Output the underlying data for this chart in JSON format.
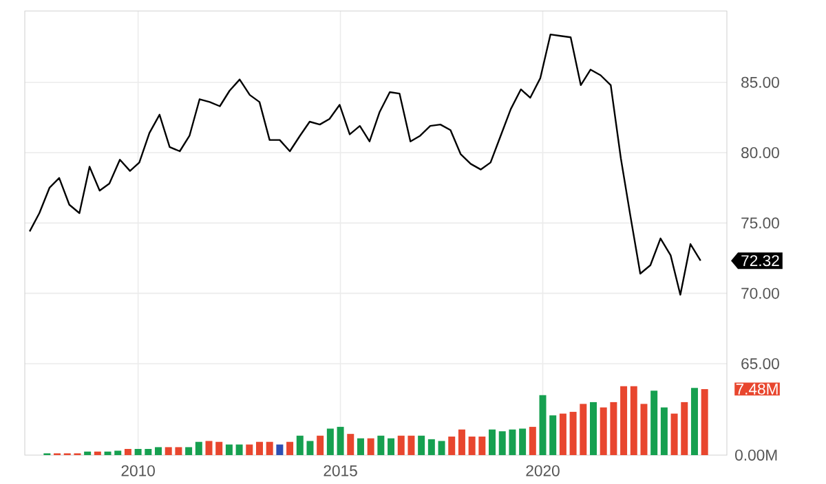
{
  "chart_data": {
    "type": "line",
    "xlim": [
      2007.2,
      2024.55
    ],
    "xticks": [
      2010,
      2015,
      2020
    ],
    "ylim": [
      58.5,
      90.07
    ],
    "yticks": [
      {
        "value": 65,
        "label": "65.00"
      },
      {
        "value": 70,
        "label": "70.00"
      },
      {
        "value": 75,
        "label": "75.00"
      },
      {
        "value": 80,
        "label": "80.00"
      },
      {
        "value": 85,
        "label": "85.00"
      }
    ],
    "y2lim": [
      0,
      50.3
    ],
    "y2ticks": [
      {
        "value": 0,
        "label": "0.00M"
      },
      {
        "value": 7.48,
        "label": "7.48M"
      }
    ],
    "grid": true,
    "annotations": [
      {
        "text": "72.32",
        "x": 2023.9,
        "y": 72.32
      }
    ],
    "series": [
      {
        "color": "#000000",
        "x": [
          2007.32,
          2007.56,
          2007.81,
          2008.05,
          2008.3,
          2008.55,
          2008.8,
          2009.05,
          2009.29,
          2009.55,
          2009.8,
          2010.03,
          2010.28,
          2010.53,
          2010.78,
          2011.03,
          2011.27,
          2011.52,
          2011.77,
          2012.02,
          2012.26,
          2012.51,
          2012.76,
          2013.0,
          2013.25,
          2013.5,
          2013.75,
          2014.0,
          2014.24,
          2014.49,
          2014.73,
          2014.98,
          2015.23,
          2015.48,
          2015.72,
          2015.97,
          2016.22,
          2016.46,
          2016.73,
          2016.97,
          2017.22,
          2017.47,
          2017.72,
          2017.97,
          2018.22,
          2018.47,
          2018.71,
          2018.96,
          2019.21,
          2019.46,
          2019.69,
          2019.94,
          2020.19,
          2020.44,
          2020.69,
          2020.94,
          2021.18,
          2021.43,
          2021.68,
          2021.93,
          2022.16,
          2022.41,
          2022.66,
          2022.91,
          2023.16,
          2023.4,
          2023.65,
          2023.9
        ],
        "values": [
          74.4,
          75.7,
          77.5,
          78.2,
          76.3,
          75.7,
          79.0,
          77.3,
          77.8,
          79.5,
          78.7,
          79.3,
          81.4,
          82.7,
          80.4,
          80.1,
          81.2,
          83.8,
          83.6,
          83.3,
          84.4,
          85.2,
          84.1,
          83.6,
          80.9,
          80.9,
          80.1,
          81.2,
          82.2,
          82.0,
          82.4,
          83.4,
          81.3,
          81.9,
          80.8,
          82.9,
          84.3,
          84.2,
          80.8,
          81.2,
          81.9,
          82.0,
          81.6,
          79.9,
          79.2,
          78.8,
          79.3,
          81.2,
          83.1,
          84.5,
          83.9,
          85.3,
          88.4,
          88.3,
          88.2,
          84.8,
          85.9,
          85.5,
          84.8,
          79.6,
          75.6,
          71.4,
          72.0,
          73.9,
          72.7,
          69.9,
          73.5,
          72.32
        ]
      },
      {
        "type": "bar",
        "axis": "y2",
        "x": [
          2007.75,
          2008.0,
          2008.25,
          2008.5,
          2008.75,
          2009.0,
          2009.25,
          2009.5,
          2009.75,
          2010.0,
          2010.25,
          2010.5,
          2010.75,
          2011.0,
          2011.25,
          2011.5,
          2011.75,
          2012.0,
          2012.25,
          2012.5,
          2012.75,
          2013.0,
          2013.25,
          2013.5,
          2013.75,
          2014.0,
          2014.25,
          2014.5,
          2014.75,
          2015.0,
          2015.25,
          2015.5,
          2015.75,
          2016.0,
          2016.25,
          2016.5,
          2016.75,
          2017.0,
          2017.25,
          2017.5,
          2017.75,
          2018.0,
          2018.25,
          2018.5,
          2018.75,
          2019.0,
          2019.25,
          2019.5,
          2019.75,
          2020.0,
          2020.25,
          2020.5,
          2020.75,
          2021.0,
          2021.25,
          2021.5,
          2021.75,
          2022.0,
          2022.25,
          2022.5,
          2022.75,
          2023.0,
          2023.25,
          2023.5,
          2023.75,
          2024.0
        ],
        "values": [
          0.2,
          0.2,
          0.2,
          0.2,
          0.4,
          0.4,
          0.4,
          0.5,
          0.7,
          0.7,
          0.7,
          0.9,
          0.9,
          0.9,
          0.9,
          1.5,
          1.6,
          1.5,
          1.2,
          1.2,
          1.2,
          1.5,
          1.5,
          1.2,
          1.5,
          2.2,
          1.6,
          2.2,
          3.0,
          3.2,
          2.4,
          1.9,
          1.9,
          2.2,
          1.9,
          2.2,
          2.2,
          2.2,
          1.8,
          1.6,
          2.1,
          2.9,
          2.1,
          2.1,
          2.9,
          2.7,
          2.9,
          3.0,
          3.2,
          6.8,
          4.5,
          4.7,
          4.9,
          5.8,
          6.0,
          5.4,
          6.0,
          7.8,
          7.8,
          5.8,
          7.3,
          5.4,
          4.7,
          6.0,
          7.6,
          7.48
        ],
        "colors": [
          "#16a050",
          "#e8462e",
          "#e8462e",
          "#e8462e",
          "#16a050",
          "#e8462e",
          "#16a050",
          "#16a050",
          "#e8462e",
          "#16a050",
          "#16a050",
          "#16a050",
          "#e8462e",
          "#e8462e",
          "#16a050",
          "#16a050",
          "#e8462e",
          "#e8462e",
          "#16a050",
          "#16a050",
          "#e8462e",
          "#e8462e",
          "#e8462e",
          "#2d4fb4",
          "#e8462e",
          "#16a050",
          "#16a050",
          "#e8462e",
          "#16a050",
          "#16a050",
          "#e8462e",
          "#16a050",
          "#e8462e",
          "#16a050",
          "#16a050",
          "#e8462e",
          "#e8462e",
          "#16a050",
          "#16a050",
          "#16a050",
          "#e8462e",
          "#e8462e",
          "#e8462e",
          "#e8462e",
          "#16a050",
          "#16a050",
          "#16a050",
          "#16a050",
          "#e8462e",
          "#16a050",
          "#16a050",
          "#e8462e",
          "#e8462e",
          "#e8462e",
          "#16a050",
          "#e8462e",
          "#e8462e",
          "#e8462e",
          "#e8462e",
          "#e8462e",
          "#16a050",
          "#16a050",
          "#e8462e",
          "#e8462e",
          "#16a050",
          "#e8462e"
        ]
      }
    ]
  }
}
